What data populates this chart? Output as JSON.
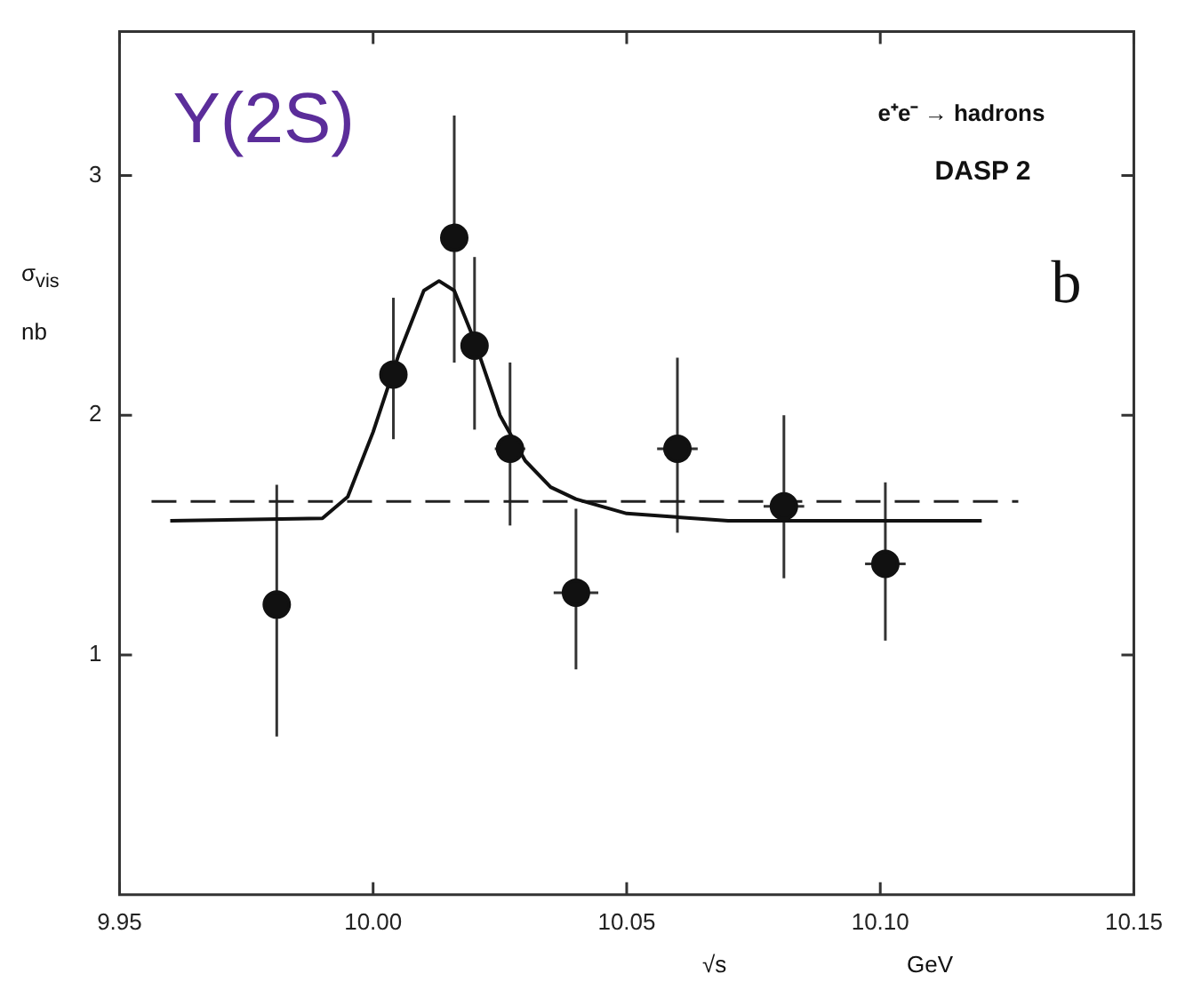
{
  "chart_data": {
    "type": "scatter",
    "xlabel": "√s GeV",
    "ylabel": "σ$_{vis}$ nb",
    "annotations": [
      "Y(2S)",
      "e⁺e⁻ → hadrons",
      "DASP 2",
      "b"
    ],
    "xlim": [
      9.95,
      10.15
    ],
    "xticks": [
      9.95,
      {
        "value": 10,
        "label": "10.00"
      },
      10.05,
      {
        "value": 10.1,
        "label": "10.10"
      },
      10.15
    ],
    "ylim": [
      0,
      3.6
    ],
    "yticks": [
      1,
      2,
      3
    ],
    "grid": false,
    "legend": false,
    "ref_lines": [
      {
        "axis": "y",
        "value": 1.64,
        "line_style": "dashed",
        "color": "#222222"
      }
    ],
    "series": [
      {
        "color": "#111111",
        "marker": "circle",
        "x": [
          9.981,
          10.004,
          10.016,
          10.02,
          10.027,
          10.04,
          10.06,
          10.081,
          10.101
        ],
        "values": [
          1.21,
          2.17,
          2.74,
          2.29,
          1.86,
          1.26,
          1.86,
          1.62,
          1.38
        ],
        "errors": [
          [
            0.66,
            1.71
          ],
          [
            1.9,
            2.49
          ],
          [
            2.22,
            3.25
          ],
          [
            1.94,
            2.66
          ],
          [
            1.54,
            2.22
          ],
          [
            0.94,
            1.61
          ],
          [
            1.51,
            2.24
          ],
          [
            1.32,
            2.0
          ],
          [
            1.06,
            1.72
          ]
        ],
        "xerrors": [
          null,
          null,
          null,
          null,
          0.003,
          0.0044,
          0.004,
          0.004,
          0.004
        ]
      },
      {
        "type": "line",
        "color": "#111111",
        "marker": "none",
        "line_style": "solid",
        "x": [
          9.96,
          9.99,
          9.995,
          10.0,
          10.005,
          10.01,
          10.013,
          10.016,
          10.02,
          10.025,
          10.03,
          10.035,
          10.04,
          10.05,
          10.07,
          10.09,
          10.12
        ],
        "values": [
          1.56,
          1.57,
          1.66,
          1.93,
          2.25,
          2.52,
          2.56,
          2.52,
          2.31,
          2.0,
          1.81,
          1.7,
          1.65,
          1.59,
          1.56,
          1.56,
          1.56
        ]
      }
    ]
  }
}
